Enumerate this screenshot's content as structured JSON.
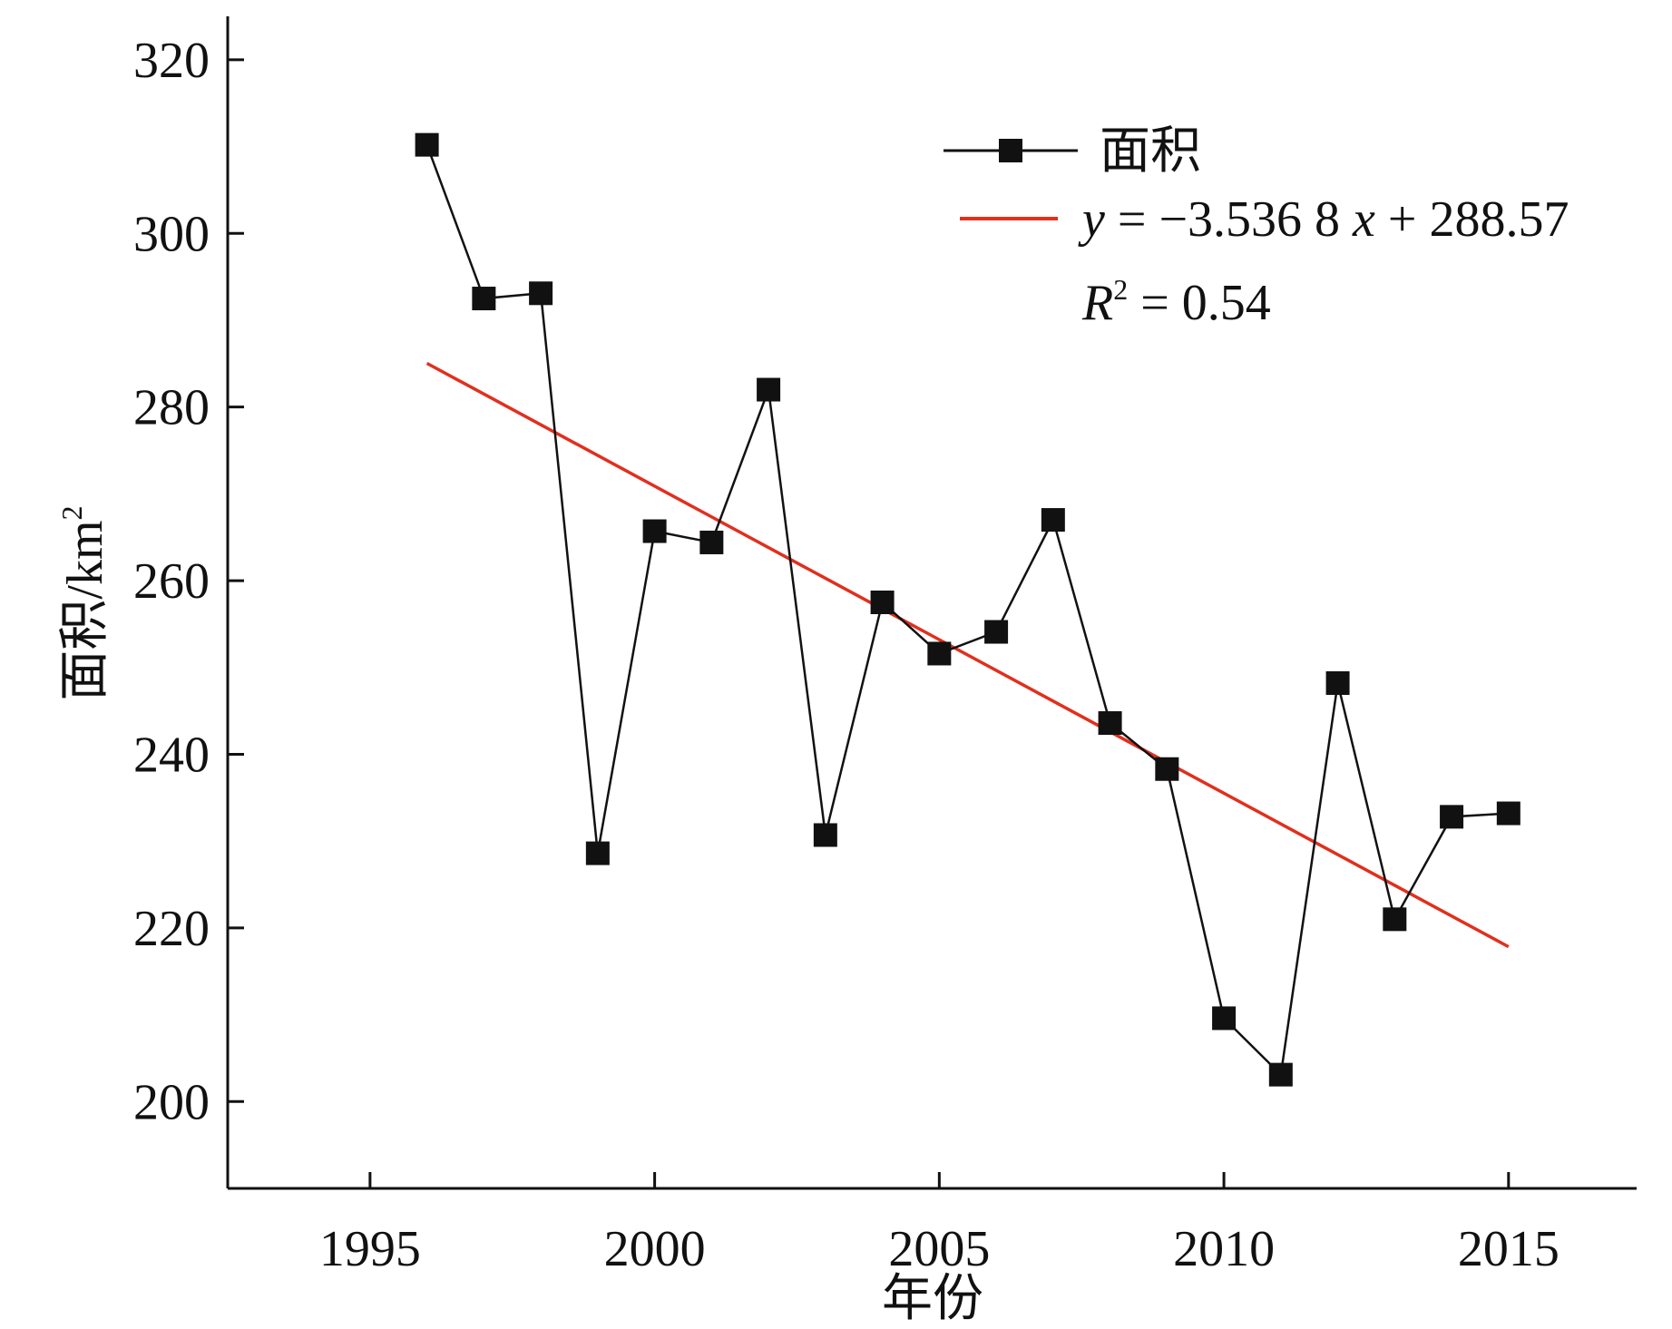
{
  "chart_data": {
    "type": "line",
    "title": "",
    "xlabel": "年份",
    "ylabel": "面积/km²",
    "ylabel_main": "面积/km",
    "ylabel_sup": "2",
    "xlim": [
      1992.5,
      2017.25
    ],
    "ylim": [
      190,
      325
    ],
    "xticks": [
      1995,
      2000,
      2005,
      2010,
      2015
    ],
    "yticks": [
      200,
      220,
      240,
      260,
      280,
      300,
      320
    ],
    "grid": false,
    "legend_position": "top-right",
    "series": [
      {
        "name": "面积",
        "color": "#111111",
        "marker": "square",
        "x": [
          1996,
          1997,
          1998,
          1999,
          2000,
          2001,
          2002,
          2003,
          2004,
          2005,
          2006,
          2007,
          2008,
          2009,
          2010,
          2011,
          2012,
          2013,
          2014,
          2015
        ],
        "values": [
          310.2,
          292.5,
          293.1,
          228.6,
          265.7,
          264.4,
          282.0,
          230.7,
          257.5,
          251.6,
          254.1,
          267.0,
          243.6,
          238.3,
          209.6,
          203.1,
          248.2,
          221.0,
          232.8,
          233.2
        ]
      }
    ],
    "trendline": {
      "label_y": "y",
      "label_rest": " = −3.536 8 ",
      "label_x": "x",
      "label_tail": " + 288.57",
      "slope": -3.5368,
      "intercept": 288.57,
      "x_index_start_year": 1995,
      "x_range": [
        1996,
        2015
      ],
      "color": "#e0301e",
      "r2_label_r": "R",
      "r2_label_sup": "2",
      "r2_label_rest": " = 0.54"
    }
  }
}
